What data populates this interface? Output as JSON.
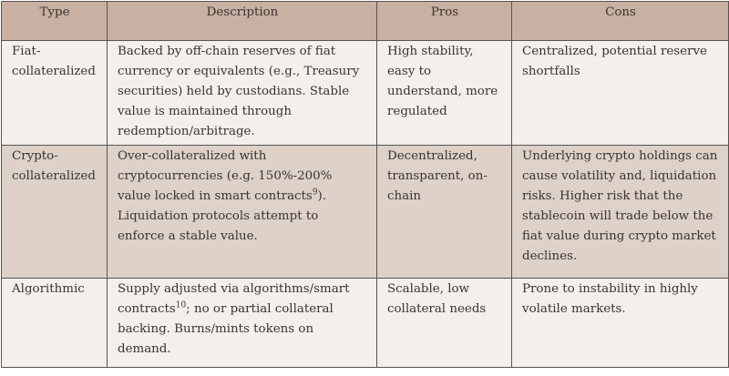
{
  "headers": [
    "Type",
    "Description",
    "Pros",
    "Cons"
  ],
  "rows": [
    {
      "type": "Fiat-collateralized",
      "description": "Backed by off-chain reserves of fiat currency or equivalents (e.g., Treasury securities) held by custodians. Stable value is maintained through redemption/arbitrage.",
      "desc_sup": "",
      "desc_after": "",
      "pros": "High stability, easy to understand, more regulated",
      "cons": "Centralized, potential reserve shortfalls"
    },
    {
      "type": "Crypto-collateralized",
      "description": "Over-collateralized with cryptocurrencies (e.g. 150%-200% value locked in smart contracts",
      "desc_sup": "9",
      "desc_after": "). Liquidation protocols attempt to enforce a stable value.",
      "pros": "Decentralized, transparent, on-chain",
      "cons": "Underlying crypto holdings can cause volatility and, liquidation risks. Higher risk that the stablecoin will trade below the fiat value during crypto market declines."
    },
    {
      "type": "Algorithmic",
      "description": "Supply adjusted via algorithms/smart contracts",
      "desc_sup": "10",
      "desc_after": "; no or partial collateral backing. Burns/mints tokens on demand.",
      "pros": "Scalable, low collateral needs",
      "cons": "Prone to instability in highly volatile markets."
    }
  ],
  "colors": {
    "header": "#c8b1a3",
    "row_light": "#f2efec",
    "row_shaded": "#ddd1c8"
  }
}
